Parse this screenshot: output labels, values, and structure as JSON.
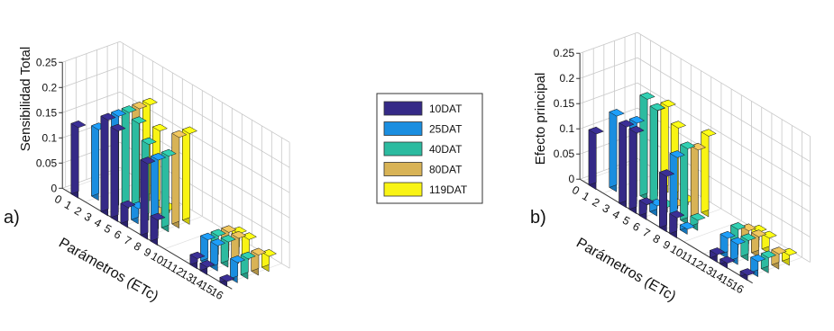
{
  "colors": {
    "series": [
      "#352a87",
      "#1a8ee0",
      "#2cbba0",
      "#d8b356",
      "#f9f414"
    ]
  },
  "legend": {
    "labels": [
      "10DAT",
      "25DAT",
      "40DAT",
      "80DAT",
      "119DAT"
    ]
  },
  "chart_data": [
    {
      "type": "bar3d",
      "panel_label": "a)",
      "ylabel": "Sensibilidad Total",
      "xlabel": "Parámetros (ETc)",
      "ylim": [
        0,
        0.25
      ],
      "yticks": [
        "0",
        "0.05",
        "0.1",
        "0.15",
        "0.2",
        "0.25"
      ],
      "categories": [
        "0",
        "1",
        "2",
        "3",
        "4",
        "5",
        "6",
        "7",
        "8",
        "9",
        "10",
        "11",
        "12",
        "13",
        "14",
        "15",
        "16"
      ],
      "grid": true,
      "series": [
        {
          "name": "10DAT",
          "values": [
            0,
            0.14,
            0,
            0,
            0.19,
            0.18,
            0.04,
            0,
            0.15,
            0.05,
            0,
            0,
            0,
            0.02,
            0.015,
            0,
            0.01
          ]
        },
        {
          "name": "25DAT",
          "values": [
            0,
            0,
            0.14,
            0,
            0.19,
            0,
            0.03,
            0,
            0.15,
            0,
            0,
            0,
            0,
            0.05,
            0.05,
            0,
            0.04
          ]
        },
        {
          "name": "40DAT",
          "values": [
            0,
            0,
            0,
            0,
            0.19,
            0.18,
            0.15,
            0,
            0.15,
            0,
            0,
            0,
            0,
            0.05,
            0.05,
            0,
            0.04
          ]
        },
        {
          "name": "80DAT",
          "values": [
            0,
            0,
            0,
            0,
            0.19,
            0,
            0.005,
            0,
            0.18,
            0,
            0,
            0,
            0,
            0.05,
            0.05,
            0,
            0.04
          ]
        },
        {
          "name": "119DAT",
          "values": [
            0,
            0,
            0,
            0,
            0.19,
            0.15,
            0.005,
            0,
            0.18,
            0,
            0,
            0,
            0,
            0.04,
            0.04,
            0,
            0.03
          ]
        }
      ]
    },
    {
      "type": "bar3d",
      "panel_label": "b)",
      "ylabel": "Efecto principal",
      "xlabel": "Parámetros (ETc)",
      "ylim": [
        0,
        0.25
      ],
      "yticks": [
        "0",
        "0.05",
        "0.1",
        "0.15",
        "0.2",
        "0.25"
      ],
      "categories": [
        "0",
        "1",
        "2",
        "3",
        "4",
        "5",
        "6",
        "7",
        "8",
        "9",
        "10",
        "11",
        "12",
        "13",
        "14",
        "15",
        "16"
      ],
      "grid": true,
      "series": [
        {
          "name": "10DAT",
          "values": [
            0,
            0.11,
            0,
            0,
            0.16,
            0.16,
            0.03,
            0,
            0.11,
            0.04,
            0,
            0,
            0,
            0.015,
            0.01,
            0,
            0.01
          ]
        },
        {
          "name": "25DAT",
          "values": [
            0,
            0,
            0.15,
            0,
            0.16,
            0.01,
            0.02,
            0,
            0.14,
            0.01,
            0,
            0,
            0,
            0.04,
            0.04,
            0,
            0.03
          ]
        },
        {
          "name": "40DAT",
          "values": [
            0,
            0,
            0,
            0,
            0.2,
            0.19,
            0.01,
            0,
            0.15,
            0.02,
            0,
            0,
            0,
            0.05,
            0.04,
            0,
            0.03
          ]
        },
        {
          "name": "80DAT",
          "values": [
            0,
            0,
            0,
            0,
            0.17,
            0,
            0.005,
            0,
            0.14,
            0,
            0,
            0,
            0,
            0.04,
            0.04,
            0,
            0.03
          ]
        },
        {
          "name": "119DAT",
          "values": [
            0,
            0,
            0,
            0,
            0.17,
            0.14,
            0.005,
            0,
            0.16,
            0,
            0,
            0,
            0,
            0.03,
            0.03,
            0,
            0.02
          ]
        }
      ]
    }
  ]
}
